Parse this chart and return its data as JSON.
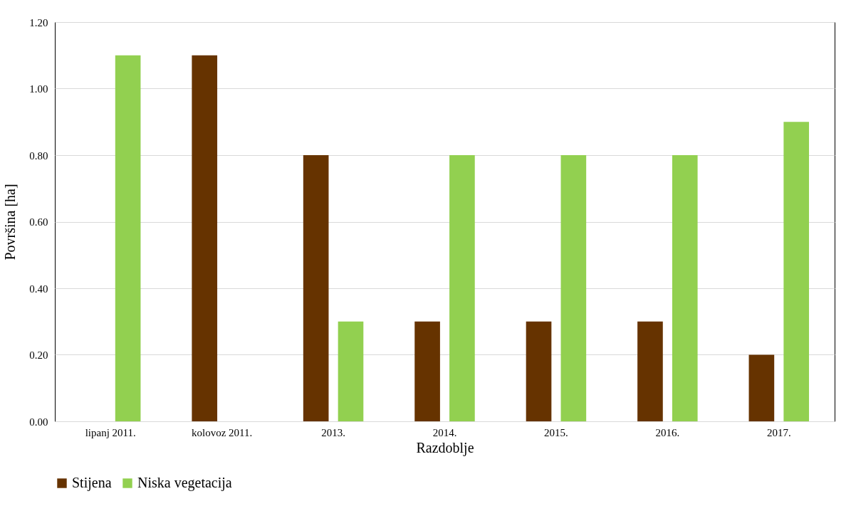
{
  "chart_data": {
    "type": "bar",
    "xlabel": "Razdoblje",
    "ylabel": "Površina [ha]",
    "categories": [
      "lipanj 2011.",
      "kolovoz 2011.",
      "2013.",
      "2014.",
      "2015.",
      "2016.",
      "2017."
    ],
    "series": [
      {
        "name": "Stijena",
        "color": "#663300",
        "values": [
          0,
          1.1,
          0.8,
          0.3,
          0.3,
          0.3,
          0.2
        ]
      },
      {
        "name": "Niska vegetacija",
        "color": "#92d050",
        "values": [
          1.1,
          0,
          0.3,
          0.8,
          0.8,
          0.8,
          0.9
        ]
      }
    ],
    "ylim": [
      0,
      1.2
    ],
    "yticks": [
      {
        "value": 0,
        "label": "0.00"
      },
      {
        "value": 0.2,
        "label": "0.20"
      },
      {
        "value": 0.4,
        "label": "0.40"
      },
      {
        "value": 0.6,
        "label": "0.60"
      },
      {
        "value": 0.8,
        "label": "0.80"
      },
      {
        "value": 1.0,
        "label": "1.00"
      },
      {
        "value": 1.2,
        "label": "1.20"
      }
    ],
    "grid": "y",
    "legend": "bottom"
  }
}
